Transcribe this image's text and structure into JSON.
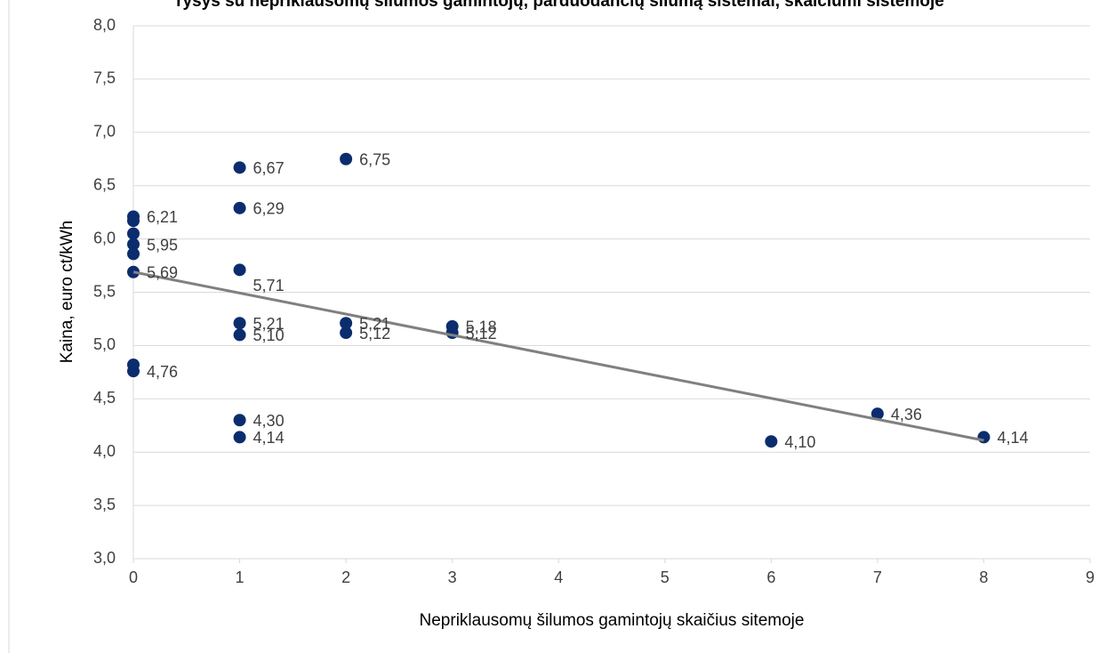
{
  "chart_data": {
    "type": "scatter",
    "title": "ryšys su nepriklausomų šilumos gamintojų, parduodančių šilumą sistemai, skaičiumi sistemoje",
    "x_label": "Nepriklausomų šilumos gamintojų skaičius sitemoje",
    "y_label": "Kaina, euro ct/kWh",
    "xlim": [
      0,
      9
    ],
    "xticks": [
      0,
      1,
      2,
      3,
      4,
      5,
      6,
      7,
      8,
      9
    ],
    "ylim": [
      3,
      8
    ],
    "yticks": [
      {
        "value": 3,
        "label": "3,0"
      },
      {
        "value": 3.5,
        "label": "3,5"
      },
      {
        "value": 4,
        "label": "4,0"
      },
      {
        "value": 4.5,
        "label": "4,5"
      },
      {
        "value": 5,
        "label": "5,0"
      },
      {
        "value": 5.5,
        "label": "5,5"
      },
      {
        "value": 6,
        "label": "6,0"
      },
      {
        "value": 6.5,
        "label": "6,5"
      },
      {
        "value": 7,
        "label": "7,0"
      },
      {
        "value": 7.5,
        "label": "7,5"
      },
      {
        "value": 8,
        "label": "8,0"
      }
    ],
    "grid": true,
    "series": [
      {
        "color": "#0b2d6e",
        "x": [
          0,
          0,
          0,
          0,
          0,
          0,
          0,
          0,
          1,
          1,
          1,
          1,
          1,
          1,
          1,
          2,
          2,
          2,
          3,
          3,
          6,
          7,
          8
        ],
        "values": [
          6.21,
          6.17,
          6.05,
          5.95,
          5.86,
          5.69,
          4.82,
          4.76,
          6.67,
          6.29,
          5.71,
          5.21,
          5.1,
          4.3,
          4.14,
          6.75,
          5.21,
          5.12,
          5.18,
          5.12,
          4.1,
          4.36,
          4.14
        ],
        "value_labels": [
          "6,21",
          null,
          null,
          "5,95",
          null,
          "5,69",
          null,
          "4,76",
          "6,67",
          "6,29",
          "5,71",
          "5,21",
          "5,10",
          "4,30",
          "4,14",
          "6,75",
          "5,21",
          "5,12",
          "5,18",
          "5,12",
          "4,10",
          "4,36",
          "4,14"
        ]
      }
    ],
    "trendline": {
      "color": "#808080",
      "x": [
        0,
        8
      ],
      "values": [
        5.69,
        4.11
      ]
    }
  }
}
